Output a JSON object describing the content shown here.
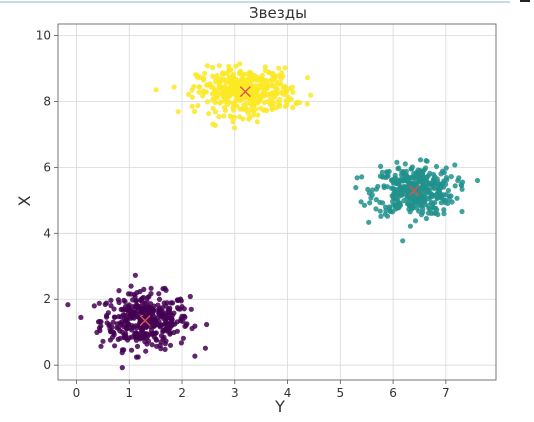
{
  "chart_data": {
    "type": "scatter",
    "title": "Звезды",
    "xlabel": "Y",
    "ylabel": "X",
    "xlim": [
      -0.35,
      7.95
    ],
    "ylim": [
      -0.45,
      10.35
    ],
    "xticks": [
      0,
      1,
      2,
      3,
      4,
      5,
      6,
      7
    ],
    "yticks": [
      0,
      2,
      4,
      6,
      8,
      10
    ],
    "grid": true,
    "series": [
      {
        "color": "#440154",
        "center": [
          1.3,
          1.35
        ],
        "spread": [
          0.42,
          0.42
        ],
        "point_count": 400
      },
      {
        "color": "#21918c",
        "center": [
          6.4,
          5.3
        ],
        "spread": [
          0.38,
          0.38
        ],
        "point_count": 400
      },
      {
        "color": "#fde725",
        "center": [
          3.2,
          8.3
        ],
        "spread": [
          0.45,
          0.35
        ],
        "point_count": 400
      }
    ],
    "centroids": [
      {
        "x": 1.3,
        "y": 1.35
      },
      {
        "x": 6.4,
        "y": 5.3
      },
      {
        "x": 3.2,
        "y": 8.3
      }
    ],
    "centroid_color": "#d9534f"
  }
}
